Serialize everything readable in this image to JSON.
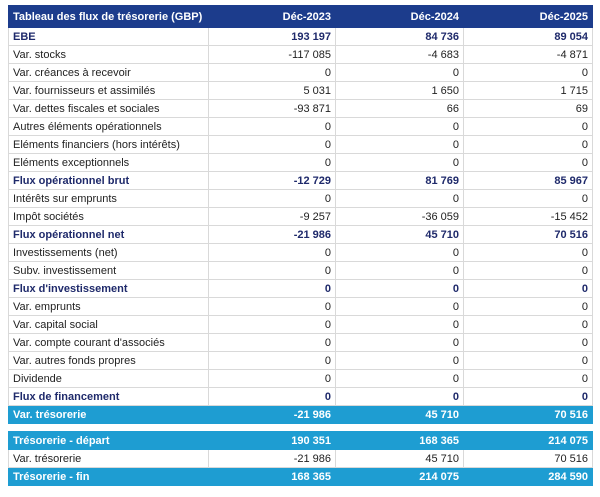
{
  "header": {
    "title": "Tableau des flux de trésorerie (GBP)",
    "columns": [
      "Déc-2023",
      "Déc-2024",
      "Déc-2025"
    ]
  },
  "table": {
    "rows": [
      {
        "label": "EBE",
        "values": [
          "193 197",
          "84 736",
          "89 054"
        ],
        "style": "bold"
      },
      {
        "label": "Var. stocks",
        "values": [
          "-117 085",
          "-4 683",
          "-4 871"
        ]
      },
      {
        "label": "Var. créances à recevoir",
        "values": [
          "0",
          "0",
          "0"
        ]
      },
      {
        "label": "Var. fournisseurs et assimilés",
        "values": [
          "5 031",
          "1 650",
          "1 715"
        ]
      },
      {
        "label": "Var. dettes fiscales et sociales",
        "values": [
          "-93 871",
          "66",
          "69"
        ]
      },
      {
        "label": "Autres éléments opérationnels",
        "values": [
          "0",
          "0",
          "0"
        ]
      },
      {
        "label": "Eléments financiers (hors intérêts)",
        "values": [
          "0",
          "0",
          "0"
        ]
      },
      {
        "label": "Eléments exceptionnels",
        "values": [
          "0",
          "0",
          "0"
        ]
      },
      {
        "label": "Flux opérationnel brut",
        "values": [
          "-12 729",
          "81 769",
          "85 967"
        ],
        "style": "bold"
      },
      {
        "label": "Intérêts sur emprunts",
        "values": [
          "0",
          "0",
          "0"
        ]
      },
      {
        "label": "Impôt sociétés",
        "values": [
          "-9 257",
          "-36 059",
          "-15 452"
        ]
      },
      {
        "label": "Flux opérationnel net",
        "values": [
          "-21 986",
          "45 710",
          "70 516"
        ],
        "style": "bold"
      },
      {
        "label": "Investissements (net)",
        "values": [
          "0",
          "0",
          "0"
        ]
      },
      {
        "label": "Subv. investissement",
        "values": [
          "0",
          "0",
          "0"
        ]
      },
      {
        "label": "Flux d'investissement",
        "values": [
          "0",
          "0",
          "0"
        ],
        "style": "bold"
      },
      {
        "label": "Var. emprunts",
        "values": [
          "0",
          "0",
          "0"
        ]
      },
      {
        "label": "Var. capital social",
        "values": [
          "0",
          "0",
          "0"
        ]
      },
      {
        "label": "Var. compte courant d'associés",
        "values": [
          "0",
          "0",
          "0"
        ]
      },
      {
        "label": "Var. autres fonds propres",
        "values": [
          "0",
          "0",
          "0"
        ]
      },
      {
        "label": "Dividende",
        "values": [
          "0",
          "0",
          "0"
        ]
      },
      {
        "label": "Flux de financement",
        "values": [
          "0",
          "0",
          "0"
        ],
        "style": "bold"
      },
      {
        "label": "Var. trésorerie",
        "values": [
          "-21 986",
          "45 710",
          "70 516"
        ],
        "style": "highlight"
      }
    ]
  },
  "summary": {
    "rows": [
      {
        "label": "Trésorerie - départ",
        "values": [
          "190 351",
          "168 365",
          "214 075"
        ],
        "style": "highlight"
      },
      {
        "label": "Var. trésorerie",
        "values": [
          "-21 986",
          "45 710",
          "70 516"
        ]
      },
      {
        "label": "Trésorerie - fin",
        "values": [
          "168 365",
          "214 075",
          "284 590"
        ],
        "style": "highlight"
      }
    ]
  }
}
